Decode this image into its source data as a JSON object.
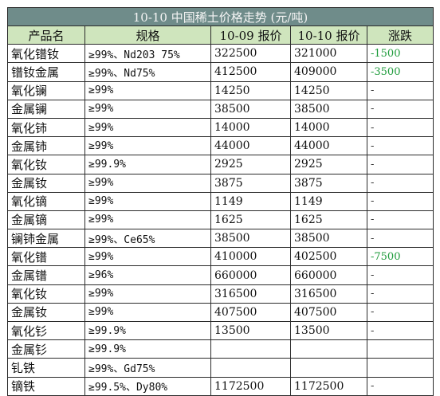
{
  "title": "10-10 中国稀土价格走势 (元/吨)",
  "headers": {
    "product": "产品名",
    "spec": "规格",
    "price_prev": "10-09 报价",
    "price_curr": "10-10 报价",
    "change": "涨跌"
  },
  "colors": {
    "title_bg": "#6f8c8a",
    "header_bg": "#cfe5bd",
    "negative_change": "#1c9a39"
  },
  "rows": [
    {
      "name": "氧化镨钕",
      "spec": "≥99%、Nd203 75%",
      "prev": "322500",
      "curr": "321000",
      "change": "-1500"
    },
    {
      "name": "镨钕金属",
      "spec": "≥99%、Nd75%",
      "prev": "412500",
      "curr": "409000",
      "change": "-3500"
    },
    {
      "name": "氧化镧",
      "spec": "≥99%",
      "prev": "14250",
      "curr": "14250",
      "change": "-"
    },
    {
      "name": "金属镧",
      "spec": "≥99%",
      "prev": "38500",
      "curr": "38500",
      "change": "-"
    },
    {
      "name": "氧化铈",
      "spec": "≥99%",
      "prev": "14000",
      "curr": "14000",
      "change": "-"
    },
    {
      "name": "金属铈",
      "spec": "≥99%",
      "prev": "44000",
      "curr": "44000",
      "change": "-"
    },
    {
      "name": "氧化钕",
      "spec": "≥99.9%",
      "prev": "2925",
      "curr": "2925",
      "change": "-"
    },
    {
      "name": "金属钕",
      "spec": "≥99%",
      "prev": "3875",
      "curr": "3875",
      "change": "-"
    },
    {
      "name": "氧化镝",
      "spec": "≥99%",
      "prev": "1149",
      "curr": "1149",
      "change": "-"
    },
    {
      "name": "金属镝",
      "spec": "≥99%",
      "prev": "1625",
      "curr": "1625",
      "change": "-"
    },
    {
      "name": "镧铈金属",
      "spec": "≥99%、Ce65%",
      "prev": "38500",
      "curr": "38500",
      "change": "-"
    },
    {
      "name": "氧化镨",
      "spec": "≥99%",
      "prev": "410000",
      "curr": "402500",
      "change": "-7500"
    },
    {
      "name": "金属镨",
      "spec": "≥96%",
      "prev": "660000",
      "curr": "660000",
      "change": "-"
    },
    {
      "name": "氧化钕",
      "spec": "≥99%",
      "prev": "316500",
      "curr": "316500",
      "change": "-"
    },
    {
      "name": "金属钕",
      "spec": "≥99%",
      "prev": "407500",
      "curr": "407500",
      "change": "-"
    },
    {
      "name": "氧化钐",
      "spec": "≥99.9%",
      "prev": "13500",
      "curr": "13500",
      "change": "-"
    },
    {
      "name": "金属钐",
      "spec": "≥99.9%",
      "prev": "",
      "curr": "",
      "change": ""
    },
    {
      "name": "钆铁",
      "spec": "≥99%、Gd75%",
      "prev": "",
      "curr": "",
      "change": ""
    },
    {
      "name": "镝铁",
      "spec": "≥99.5%、Dy80%",
      "prev": "1172500",
      "curr": "1172500",
      "change": "-"
    }
  ]
}
